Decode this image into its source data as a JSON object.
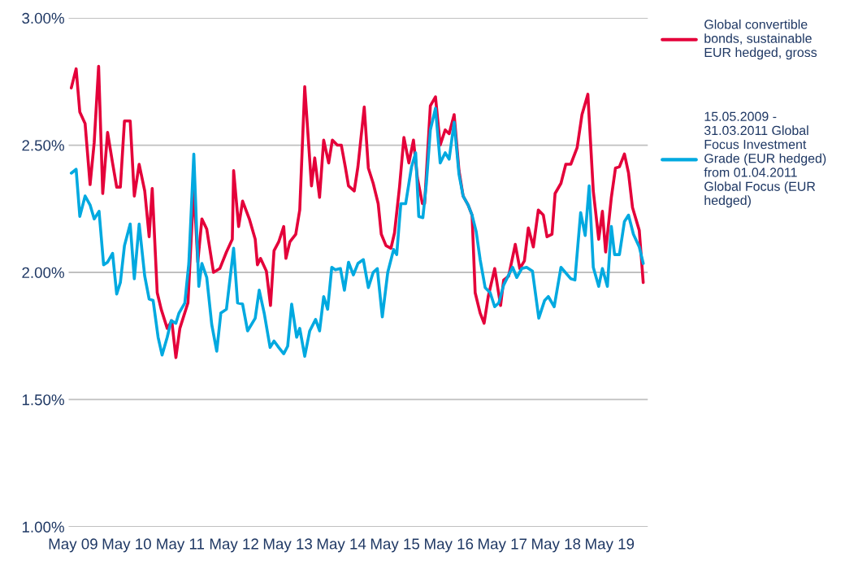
{
  "chart_data": {
    "type": "line",
    "xlim": [
      "2009-04-01",
      "2020-01-16"
    ],
    "xticks": [
      {
        "value": "2009-05-01",
        "label": "May 09"
      },
      {
        "value": "2010-05-01",
        "label": "May 10"
      },
      {
        "value": "2011-05-01",
        "label": "May 11"
      },
      {
        "value": "2012-05-01",
        "label": "May 12"
      },
      {
        "value": "2013-05-01",
        "label": "May 13"
      },
      {
        "value": "2014-05-01",
        "label": "May 14"
      },
      {
        "value": "2015-05-01",
        "label": "May 15"
      },
      {
        "value": "2016-05-01",
        "label": "May 16"
      },
      {
        "value": "2017-05-01",
        "label": "May 17"
      },
      {
        "value": "2018-05-01",
        "label": "May 18"
      },
      {
        "value": "2019-05-01",
        "label": "May 19"
      }
    ],
    "ylim": [
      1.0,
      3.0
    ],
    "yticks": [
      {
        "value": 1.0,
        "label": "1.00%"
      },
      {
        "value": 1.5,
        "label": "1.50%"
      },
      {
        "value": 2.0,
        "label": "2.00%"
      },
      {
        "value": 2.5,
        "label": "2.50%"
      },
      {
        "value": 3.0,
        "label": "3.00%"
      }
    ],
    "grid": "y",
    "legend": "top right",
    "marker": "none",
    "line_style": "solid",
    "series": [
      {
        "name": "Global convertible bonds, sustainable EUR hedged, gross",
        "color": "#e4003a",
        "x": [
          "2009-04-19",
          "2009-05-22",
          "2009-06-16",
          "2009-07-22",
          "2009-08-25",
          "2009-09-22",
          "2009-10-22",
          "2009-11-19",
          "2009-12-22",
          "2010-01-25",
          "2010-02-22",
          "2010-03-19",
          "2010-04-16",
          "2010-05-25",
          "2010-06-22",
          "2010-07-25",
          "2010-09-01",
          "2010-10-01",
          "2010-10-22",
          "2010-11-25",
          "2010-12-22",
          "2011-02-01",
          "2011-03-04",
          "2011-04-01",
          "2011-04-28",
          "2011-06-22",
          "2011-08-01",
          "2011-08-28",
          "2011-09-25",
          "2011-10-28",
          "2011-12-13",
          "2012-01-25",
          "2012-03-10",
          "2012-04-19",
          "2012-04-28",
          "2012-06-01",
          "2012-06-28",
          "2012-08-13",
          "2012-09-22",
          "2012-10-07",
          "2012-10-28",
          "2012-12-07",
          "2013-01-04",
          "2013-01-28",
          "2013-03-01",
          "2013-04-04",
          "2013-04-19",
          "2013-05-16",
          "2013-06-25",
          "2013-07-22",
          "2013-08-25",
          "2013-10-10",
          "2013-11-01",
          "2013-12-04",
          "2014-01-01",
          "2014-02-04",
          "2014-03-01",
          "2014-04-04",
          "2014-05-01",
          "2014-05-28",
          "2014-06-19",
          "2014-07-28",
          "2014-08-22",
          "2014-10-04",
          "2014-11-01",
          "2014-12-04",
          "2015-01-07",
          "2015-01-28",
          "2015-03-01",
          "2015-04-04",
          "2015-04-28",
          "2015-06-01",
          "2015-07-01",
          "2015-08-04",
          "2015-09-04",
          "2015-10-01",
          "2015-11-04",
          "2015-11-19",
          "2015-12-28",
          "2016-02-01",
          "2016-03-04",
          "2016-04-07",
          "2016-05-04",
          "2016-06-07",
          "2016-07-10",
          "2016-08-07",
          "2016-09-10",
          "2016-10-07",
          "2016-10-28",
          "2016-12-01",
          "2016-12-28",
          "2017-01-25",
          "2017-03-10",
          "2017-04-19",
          "2017-05-10",
          "2017-06-13",
          "2017-07-28",
          "2017-08-28",
          "2017-09-28",
          "2017-10-25",
          "2017-11-28",
          "2018-01-01",
          "2018-02-04",
          "2018-03-01",
          "2018-04-04",
          "2018-04-25",
          "2018-06-04",
          "2018-07-07",
          "2018-08-10",
          "2018-09-22",
          "2018-10-25",
          "2018-12-04",
          "2019-01-10",
          "2019-02-16",
          "2019-03-13",
          "2019-04-04",
          "2019-05-13",
          "2019-06-10",
          "2019-07-07",
          "2019-08-10",
          "2019-09-07",
          "2019-10-04",
          "2019-11-19",
          "2019-12-16"
        ],
        "values": [
          2.725,
          2.8,
          2.63,
          2.585,
          2.345,
          2.51,
          2.81,
          2.31,
          2.55,
          2.43,
          2.335,
          2.335,
          2.595,
          2.595,
          2.3,
          2.425,
          2.32,
          2.14,
          2.33,
          1.92,
          1.855,
          1.78,
          1.81,
          1.665,
          1.78,
          1.88,
          2.335,
          2.04,
          2.21,
          2.17,
          2.0,
          2.015,
          2.08,
          2.13,
          2.4,
          2.18,
          2.28,
          2.21,
          2.13,
          2.03,
          2.055,
          2.005,
          1.87,
          2.085,
          2.12,
          2.18,
          2.055,
          2.12,
          2.15,
          2.245,
          2.73,
          2.34,
          2.45,
          2.295,
          2.52,
          2.43,
          2.52,
          2.5,
          2.5,
          2.415,
          2.34,
          2.32,
          2.415,
          2.65,
          2.41,
          2.35,
          2.27,
          2.15,
          2.105,
          2.095,
          2.155,
          2.335,
          2.53,
          2.43,
          2.52,
          2.37,
          2.27,
          2.27,
          2.655,
          2.69,
          2.5,
          2.56,
          2.545,
          2.62,
          2.4,
          2.3,
          2.265,
          2.225,
          1.92,
          1.84,
          1.8,
          1.905,
          2.015,
          1.87,
          1.97,
          1.985,
          2.11,
          2.015,
          2.045,
          2.175,
          2.1,
          2.245,
          2.225,
          2.14,
          2.15,
          2.31,
          2.35,
          2.425,
          2.425,
          2.49,
          2.62,
          2.7,
          2.32,
          2.13,
          2.24,
          2.08,
          2.295,
          2.41,
          2.415,
          2.465,
          2.39,
          2.255,
          2.165,
          1.96
        ]
      },
      {
        "name": "15.05.2009 - 31.03.2011 Global Focus Investment Grade (EUR hedged) from 01.04.2011 Global Focus (EUR hedged)",
        "color": "#00a9e0",
        "x": [
          "2009-04-19",
          "2009-05-22",
          "2009-06-16",
          "2009-07-22",
          "2009-08-25",
          "2009-09-22",
          "2009-10-25",
          "2009-11-25",
          "2009-12-22",
          "2010-01-25",
          "2010-02-22",
          "2010-03-19",
          "2010-04-16",
          "2010-05-25",
          "2010-06-22",
          "2010-07-25",
          "2010-09-01",
          "2010-10-01",
          "2010-10-28",
          "2010-12-01",
          "2010-12-28",
          "2011-02-01",
          "2011-02-28",
          "2011-04-01",
          "2011-04-22",
          "2011-06-01",
          "2011-06-28",
          "2011-08-01",
          "2011-09-04",
          "2011-09-25",
          "2011-10-28",
          "2011-12-01",
          "2012-01-04",
          "2012-02-01",
          "2012-03-10",
          "2012-04-28",
          "2012-05-25",
          "2012-06-28",
          "2012-08-01",
          "2012-09-22",
          "2012-10-19",
          "2012-11-22",
          "2013-01-01",
          "2013-01-28",
          "2013-03-01",
          "2013-04-04",
          "2013-05-01",
          "2013-05-28",
          "2013-07-01",
          "2013-07-22",
          "2013-08-25",
          "2013-09-28",
          "2013-11-07",
          "2013-12-04",
          "2014-01-01",
          "2014-01-28",
          "2014-02-25",
          "2014-03-22",
          "2014-04-25",
          "2014-05-22",
          "2014-06-19",
          "2014-07-22",
          "2014-08-22",
          "2014-09-28",
          "2014-11-01",
          "2014-12-04",
          "2015-01-01",
          "2015-02-04",
          "2015-03-13",
          "2015-04-22",
          "2015-05-13",
          "2015-06-10",
          "2015-07-13",
          "2015-08-22",
          "2015-09-19",
          "2015-10-10",
          "2015-11-07",
          "2015-12-01",
          "2015-12-28",
          "2016-02-01",
          "2016-03-04",
          "2016-04-07",
          "2016-05-04",
          "2016-06-07",
          "2016-07-10",
          "2016-08-07",
          "2016-09-10",
          "2016-10-07",
          "2016-11-04",
          "2016-12-01",
          "2017-01-04",
          "2017-02-07",
          "2017-03-10",
          "2017-04-07",
          "2017-05-10",
          "2017-06-13",
          "2017-07-10",
          "2017-08-07",
          "2017-09-10",
          "2017-10-13",
          "2017-11-22",
          "2018-01-04",
          "2018-02-13",
          "2018-03-10",
          "2018-04-19",
          "2018-06-04",
          "2018-08-10",
          "2018-09-07",
          "2018-10-16",
          "2018-11-16",
          "2018-12-13",
          "2019-01-10",
          "2019-02-16",
          "2019-03-13",
          "2019-04-16",
          "2019-05-13",
          "2019-06-04",
          "2019-07-07",
          "2019-08-10",
          "2019-09-07",
          "2019-10-10",
          "2019-11-19",
          "2019-12-16"
        ],
        "values": [
          2.39,
          2.405,
          2.22,
          2.3,
          2.265,
          2.21,
          2.24,
          2.03,
          2.04,
          2.075,
          1.915,
          1.96,
          2.105,
          2.19,
          1.975,
          2.19,
          1.985,
          1.895,
          1.89,
          1.745,
          1.675,
          1.745,
          1.81,
          1.8,
          1.84,
          1.88,
          2.035,
          2.465,
          1.945,
          2.035,
          1.98,
          1.795,
          1.69,
          1.84,
          1.855,
          2.095,
          1.88,
          1.875,
          1.77,
          1.82,
          1.93,
          1.84,
          1.705,
          1.73,
          1.705,
          1.68,
          1.71,
          1.875,
          1.745,
          1.78,
          1.67,
          1.77,
          1.815,
          1.77,
          1.905,
          1.855,
          2.02,
          2.01,
          2.015,
          1.93,
          2.04,
          1.99,
          2.035,
          2.05,
          1.94,
          2.0,
          2.015,
          1.825,
          2.0,
          2.09,
          2.07,
          2.27,
          2.27,
          2.415,
          2.47,
          2.22,
          2.215,
          2.35,
          2.56,
          2.645,
          2.43,
          2.47,
          2.445,
          2.59,
          2.385,
          2.3,
          2.265,
          2.225,
          2.16,
          2.05,
          1.94,
          1.92,
          1.865,
          1.88,
          1.95,
          1.99,
          2.02,
          1.98,
          2.015,
          2.02,
          2.005,
          1.82,
          1.89,
          1.905,
          1.865,
          2.02,
          1.975,
          1.97,
          2.235,
          2.145,
          2.34,
          2.02,
          1.945,
          2.015,
          1.945,
          2.18,
          2.07,
          2.07,
          2.2,
          2.225,
          2.15,
          2.1,
          2.035
        ]
      }
    ]
  }
}
